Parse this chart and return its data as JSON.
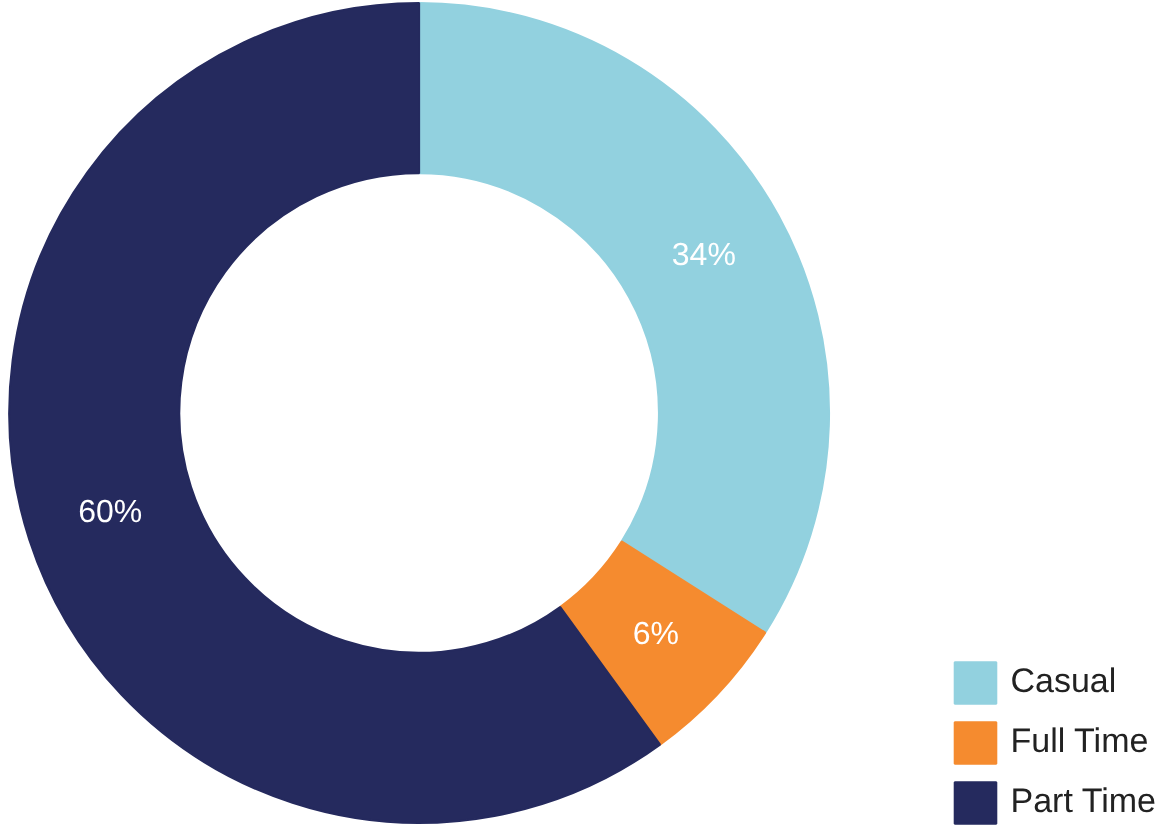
{
  "chart_data": {
    "type": "donut",
    "categories": [
      "Casual",
      "Full Time",
      "Part Time"
    ],
    "values": [
      34,
      6,
      60
    ],
    "colors": [
      "#92d1df",
      "#f58b2f",
      "#252a5e"
    ],
    "value_labels": [
      "34%",
      "6%",
      "60%"
    ],
    "legend": "bottom right"
  }
}
